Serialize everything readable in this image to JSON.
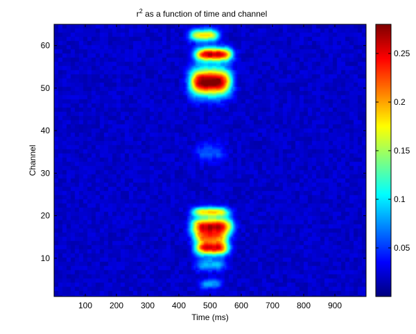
{
  "chart_data": {
    "type": "heatmap",
    "title_base": "r",
    "title_sup": "2",
    "title_rest": " as a function of time and channel",
    "xlabel": "Time (ms)",
    "ylabel": "Channel",
    "xlim": [
      0,
      1000
    ],
    "ylim": [
      1,
      65
    ],
    "x_ticks": [
      100,
      200,
      300,
      400,
      500,
      600,
      700,
      800,
      900
    ],
    "y_ticks": [
      10,
      20,
      30,
      40,
      50,
      60
    ],
    "colorbar": {
      "colormap": "jet",
      "range": [
        0,
        0.28
      ],
      "ticks": [
        0.05,
        0.1,
        0.15,
        0.2,
        0.25
      ]
    },
    "background_level": 0.02,
    "hotspots": [
      {
        "time_ms": 500,
        "channel": 51.5,
        "peak": 0.27,
        "time_spread_ms": 55,
        "channel_spread": 2.2
      },
      {
        "time_ms": 510,
        "channel": 58,
        "peak": 0.24,
        "time_spread_ms": 50,
        "channel_spread": 1.1
      },
      {
        "time_ms": 480,
        "channel": 62.5,
        "peak": 0.16,
        "time_spread_ms": 40,
        "channel_spread": 1.0
      },
      {
        "time_ms": 505,
        "channel": 17.5,
        "peak": 0.24,
        "time_spread_ms": 55,
        "channel_spread": 1.5
      },
      {
        "time_ms": 505,
        "channel": 12.5,
        "peak": 0.23,
        "time_spread_ms": 45,
        "channel_spread": 1.2
      },
      {
        "time_ms": 500,
        "channel": 21,
        "peak": 0.15,
        "time_spread_ms": 50,
        "channel_spread": 0.8
      },
      {
        "time_ms": 500,
        "channel": 15,
        "peak": 0.12,
        "time_spread_ms": 45,
        "channel_spread": 1.0
      },
      {
        "time_ms": 500,
        "channel": 8.5,
        "peak": 0.07,
        "time_spread_ms": 40,
        "channel_spread": 1.0
      },
      {
        "time_ms": 500,
        "channel": 4,
        "peak": 0.06,
        "time_spread_ms": 30,
        "channel_spread": 0.8
      },
      {
        "time_ms": 500,
        "channel": 35,
        "peak": 0.04,
        "time_spread_ms": 40,
        "channel_spread": 1.5
      }
    ]
  }
}
